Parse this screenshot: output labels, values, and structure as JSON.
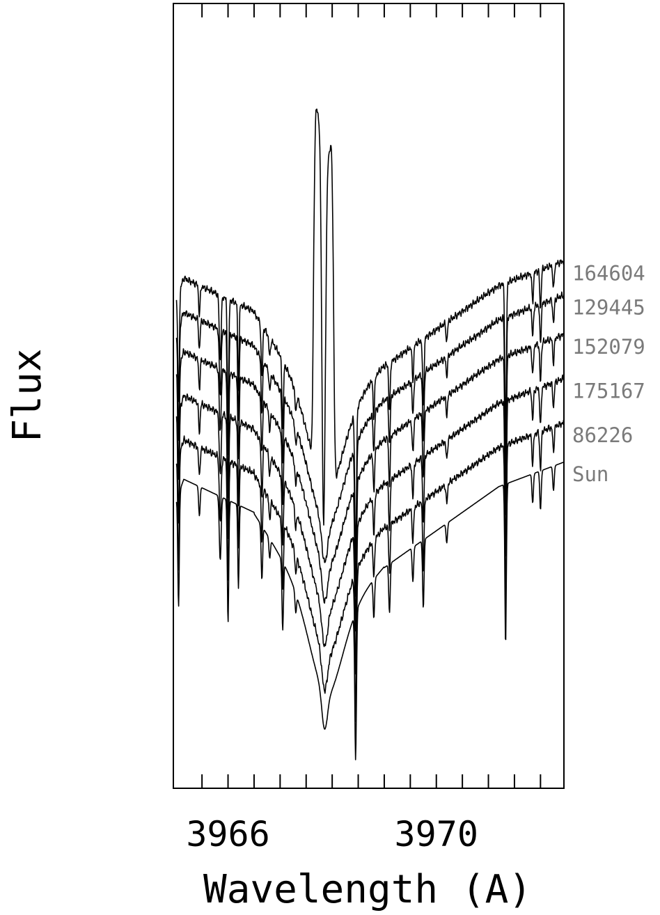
{
  "chart_data": {
    "type": "line",
    "xlabel": "Wavelength (A)",
    "ylabel": "Flux",
    "xlim": [
      3964.95,
      3972.45
    ],
    "x_ticks_labeled": [
      3966,
      3970
    ],
    "x_ticks_minor": [
      3965.5,
      3966,
      3966.5,
      3967,
      3967.5,
      3968,
      3968.5,
      3969,
      3969.5,
      3970,
      3970.5,
      3971,
      3971.5,
      3972
    ],
    "ylim": [
      0,
      1.6
    ],
    "grid": false,
    "legend": "labels at right edge of each spectrum",
    "series": [
      {
        "name": "164604",
        "continuum": 1.04,
        "emission_peak": 1.53
      },
      {
        "name": "129445",
        "continuum": 0.97
      },
      {
        "name": "152079",
        "continuum": 0.89
      },
      {
        "name": "175167",
        "continuum": 0.8
      },
      {
        "name": "86226",
        "continuum": 0.71
      },
      {
        "name": "Sun",
        "continuum": 0.63
      }
    ]
  }
}
